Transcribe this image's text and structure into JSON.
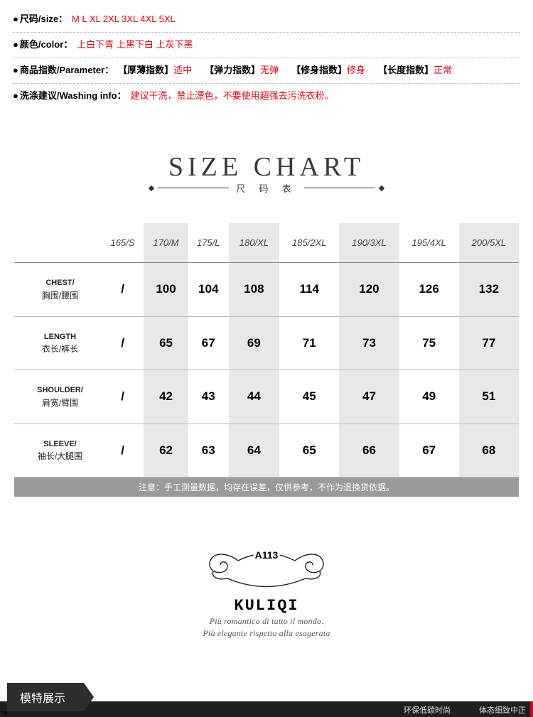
{
  "info": {
    "size": {
      "label": "尺码/size：",
      "value": "M L XL 2XL 3XL 4XL 5XL"
    },
    "color": {
      "label": "颜色/color：",
      "value": "上白下青 上黑下白 上灰下黑"
    },
    "param": {
      "label": "商品指数/Parameter：",
      "items": [
        {
          "k": "【厚薄指数】",
          "v": "适中"
        },
        {
          "k": "【弹力指数】",
          "v": "无弹"
        },
        {
          "k": "【修身指数】",
          "v": "修身"
        },
        {
          "k": "【长度指数】",
          "v": "正常"
        }
      ]
    },
    "wash": {
      "label": "洗涤建议/Washing info：",
      "value": "建议干洗，禁止漂色，不要使用超强去污洗衣粉。"
    }
  },
  "chart": {
    "title": "SIZE CHART",
    "subtitle": "尺 码 表",
    "columns": [
      "",
      "165/S",
      "170/M",
      "175/L",
      "180/XL",
      "185/2XL",
      "190/3XL",
      "195/4XL",
      "200/5XL"
    ],
    "shaded_cols": [
      2,
      4,
      6,
      8
    ],
    "rows": [
      {
        "en": "CHEST/",
        "cn": "胸围/腰围",
        "cells": [
          "/",
          "100",
          "104",
          "108",
          "114",
          "120",
          "126",
          "132"
        ]
      },
      {
        "en": "LENGTH",
        "cn": "衣长/裤长",
        "cells": [
          "/",
          "65",
          "67",
          "69",
          "71",
          "73",
          "75",
          "77"
        ]
      },
      {
        "en": "SHOULDER/",
        "cn": "肩宽/臂围",
        "cells": [
          "/",
          "42",
          "43",
          "44",
          "45",
          "47",
          "49",
          "51"
        ]
      },
      {
        "en": "SLEEVE/",
        "cn": "袖长/大腿围",
        "cells": [
          "/",
          "62",
          "63",
          "64",
          "65",
          "66",
          "67",
          "68"
        ]
      }
    ],
    "note": "注意：手工测量数据，均存在误差，仅供参考，不作为退换货依据。"
  },
  "brand": {
    "code": "A113",
    "name": "KULIQI",
    "line1": "Più romantico di tutto il mondo.",
    "line2": "Più elegante rispetto alla esagerata"
  },
  "ribbon": {
    "tab": "模特展示",
    "right": [
      "环保低碳时尚",
      "体态细致中正"
    ]
  },
  "colors": {
    "accent_red": "#e60012",
    "shade": "#e8e8e8",
    "notebar": "#9a9a9a",
    "ribbon": "#2d2d2d"
  }
}
